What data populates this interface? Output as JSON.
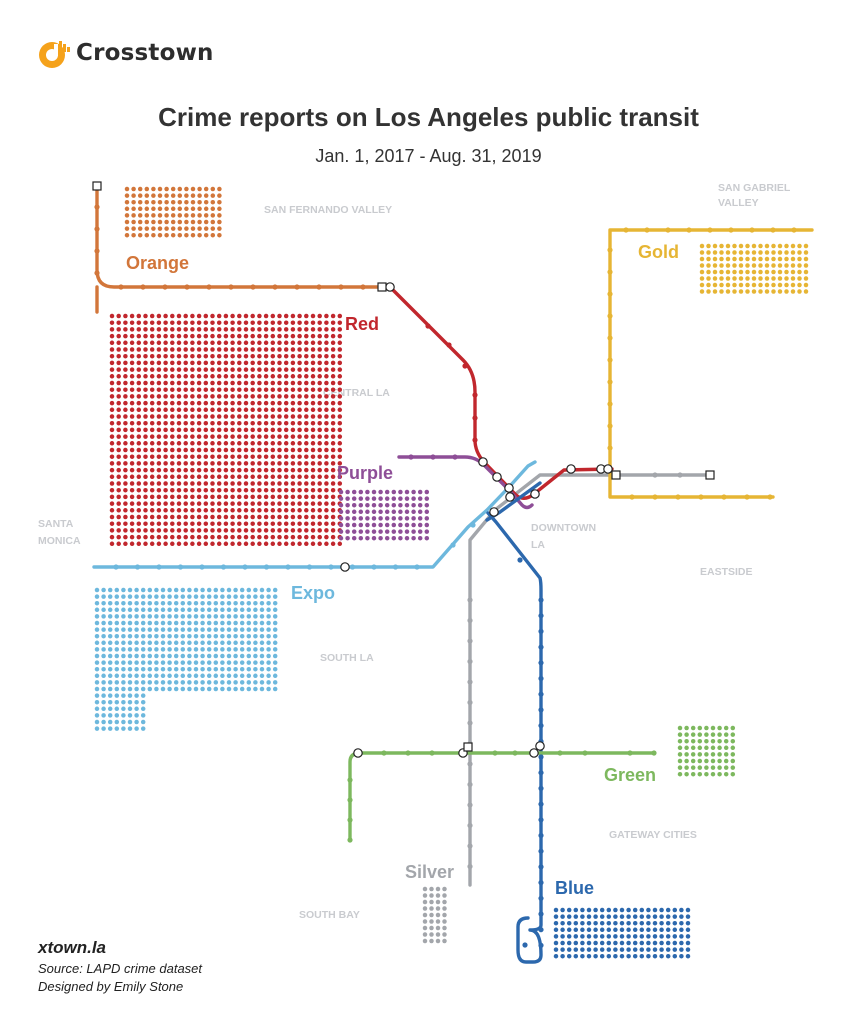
{
  "brand": {
    "name": "Crosstown",
    "logo_icon": "crosstown-logo-icon",
    "color": "#f5a21b"
  },
  "title": "Crime reports on Los Angeles public transit",
  "subtitle": "Jan. 1, 2017 - Aug. 31, 2019",
  "regions": {
    "san_fernando_valley": "SAN FERNANDO VALLEY",
    "san_gabriel_valley": [
      "SAN GABRIEL",
      "VALLEY"
    ],
    "central_la": "CENTRAL LA",
    "santa_monica": [
      "SANTA",
      "MONICA"
    ],
    "downtown_la": [
      "DOWNTOWN",
      "LA"
    ],
    "eastside": "EASTSIDE",
    "south_la": "SOUTH LA",
    "gateway_cities": "GATEWAY CITIES",
    "south_bay": "SOUTH BAY"
  },
  "lines": [
    {
      "id": "orange",
      "name": "Orange",
      "color": "#d2763a"
    },
    {
      "id": "red",
      "name": "Red",
      "color": "#c1272d"
    },
    {
      "id": "purple",
      "name": "Purple",
      "color": "#8e4e97"
    },
    {
      "id": "expo",
      "name": "Expo",
      "color": "#6db8dd"
    },
    {
      "id": "gold",
      "name": "Gold",
      "color": "#e6b534"
    },
    {
      "id": "green",
      "name": "Green",
      "color": "#7db85e"
    },
    {
      "id": "blue",
      "name": "Blue",
      "color": "#2c68ad"
    },
    {
      "id": "silver",
      "name": "Silver",
      "color": "#a3a6ab"
    }
  ],
  "footer": {
    "site": "xtown.la",
    "source": "Source: LAPD crime dataset",
    "designer": "Designed by Emily Stone"
  }
}
